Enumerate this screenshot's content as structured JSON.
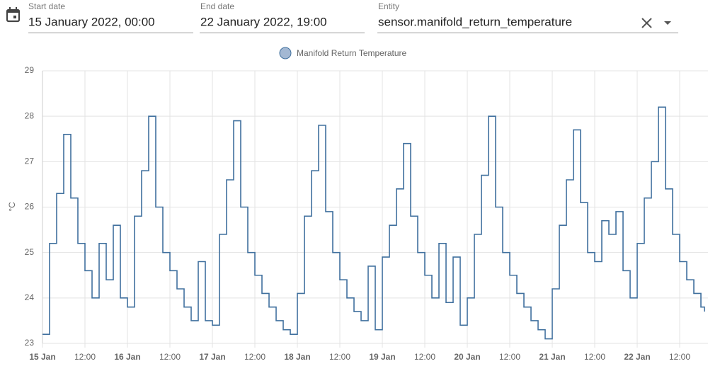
{
  "header": {
    "start_label": "Start date",
    "start_value": "15 January 2022, 00:00",
    "end_label": "End date",
    "end_value": "22 January 2022, 19:00",
    "entity_label": "Entity",
    "entity_value": "sensor.manifold_return_temperature"
  },
  "chart_data": {
    "type": "line",
    "step": true,
    "y_label": "°C",
    "grid": true,
    "xlim": [
      "2022-01-15T00:00",
      "2022-01-22T19:00"
    ],
    "ylim": [
      23,
      29
    ],
    "yticks": [
      23,
      24,
      25,
      26,
      27,
      28,
      29
    ],
    "xticks": [
      {
        "value": "2022-01-15T00:00",
        "label": "15 Jan"
      },
      {
        "value": "2022-01-15T12:00",
        "label": "12:00"
      },
      {
        "value": "2022-01-16T00:00",
        "label": "16 Jan"
      },
      {
        "value": "2022-01-16T12:00",
        "label": "12:00"
      },
      {
        "value": "2022-01-17T00:00",
        "label": "17 Jan"
      },
      {
        "value": "2022-01-17T12:00",
        "label": "12:00"
      },
      {
        "value": "2022-01-18T00:00",
        "label": "18 Jan"
      },
      {
        "value": "2022-01-18T12:00",
        "label": "12:00"
      },
      {
        "value": "2022-01-19T00:00",
        "label": "19 Jan"
      },
      {
        "value": "2022-01-19T12:00",
        "label": "12:00"
      },
      {
        "value": "2022-01-20T00:00",
        "label": "20 Jan"
      },
      {
        "value": "2022-01-20T12:00",
        "label": "12:00"
      },
      {
        "value": "2022-01-21T00:00",
        "label": "21 Jan"
      },
      {
        "value": "2022-01-21T12:00",
        "label": "12:00"
      },
      {
        "value": "2022-01-22T00:00",
        "label": "22 Jan"
      },
      {
        "value": "2022-01-22T12:00",
        "label": "12:00"
      }
    ],
    "x": [
      "2022-01-15T00:00",
      "2022-01-15T02:00",
      "2022-01-15T04:00",
      "2022-01-15T06:00",
      "2022-01-15T08:00",
      "2022-01-15T10:00",
      "2022-01-15T12:00",
      "2022-01-15T14:00",
      "2022-01-15T16:00",
      "2022-01-15T18:00",
      "2022-01-15T20:00",
      "2022-01-15T22:00",
      "2022-01-16T00:00",
      "2022-01-16T02:00",
      "2022-01-16T04:00",
      "2022-01-16T06:00",
      "2022-01-16T08:00",
      "2022-01-16T10:00",
      "2022-01-16T12:00",
      "2022-01-16T14:00",
      "2022-01-16T16:00",
      "2022-01-16T18:00",
      "2022-01-16T20:00",
      "2022-01-16T22:00",
      "2022-01-17T00:00",
      "2022-01-17T02:00",
      "2022-01-17T04:00",
      "2022-01-17T06:00",
      "2022-01-17T08:00",
      "2022-01-17T10:00",
      "2022-01-17T12:00",
      "2022-01-17T14:00",
      "2022-01-17T16:00",
      "2022-01-17T18:00",
      "2022-01-17T20:00",
      "2022-01-17T22:00",
      "2022-01-18T00:00",
      "2022-01-18T02:00",
      "2022-01-18T04:00",
      "2022-01-18T06:00",
      "2022-01-18T08:00",
      "2022-01-18T10:00",
      "2022-01-18T12:00",
      "2022-01-18T14:00",
      "2022-01-18T16:00",
      "2022-01-18T18:00",
      "2022-01-18T20:00",
      "2022-01-18T22:00",
      "2022-01-19T00:00",
      "2022-01-19T02:00",
      "2022-01-19T04:00",
      "2022-01-19T06:00",
      "2022-01-19T08:00",
      "2022-01-19T10:00",
      "2022-01-19T12:00",
      "2022-01-19T14:00",
      "2022-01-19T16:00",
      "2022-01-19T18:00",
      "2022-01-19T20:00",
      "2022-01-19T22:00",
      "2022-01-20T00:00",
      "2022-01-20T02:00",
      "2022-01-20T04:00",
      "2022-01-20T06:00",
      "2022-01-20T08:00",
      "2022-01-20T10:00",
      "2022-01-20T12:00",
      "2022-01-20T14:00",
      "2022-01-20T16:00",
      "2022-01-20T18:00",
      "2022-01-20T20:00",
      "2022-01-20T22:00",
      "2022-01-21T00:00",
      "2022-01-21T02:00",
      "2022-01-21T04:00",
      "2022-01-21T06:00",
      "2022-01-21T08:00",
      "2022-01-21T10:00",
      "2022-01-21T12:00",
      "2022-01-21T14:00",
      "2022-01-21T16:00",
      "2022-01-21T18:00",
      "2022-01-21T20:00",
      "2022-01-21T22:00",
      "2022-01-22T00:00",
      "2022-01-22T02:00",
      "2022-01-22T04:00",
      "2022-01-22T06:00",
      "2022-01-22T08:00",
      "2022-01-22T10:00",
      "2022-01-22T12:00",
      "2022-01-22T14:00",
      "2022-01-22T16:00",
      "2022-01-22T18:00",
      "2022-01-22T19:00"
    ],
    "series": [
      {
        "name": "Manifold Return Temperature",
        "color": "#40709e",
        "legend_fill": "#a3b8d3",
        "values": [
          23.2,
          25.2,
          26.3,
          27.6,
          26.2,
          25.2,
          24.6,
          24.0,
          25.2,
          24.4,
          25.6,
          24.0,
          23.8,
          25.8,
          26.8,
          28.0,
          26.0,
          25.0,
          24.6,
          24.2,
          23.8,
          23.5,
          24.8,
          23.5,
          23.4,
          25.4,
          26.6,
          27.9,
          26.0,
          25.0,
          24.5,
          24.1,
          23.8,
          23.5,
          23.3,
          23.2,
          24.1,
          25.8,
          26.8,
          27.8,
          25.9,
          25.0,
          24.4,
          24.0,
          23.7,
          23.5,
          24.7,
          23.3,
          24.9,
          25.6,
          26.4,
          27.4,
          25.8,
          25.0,
          24.5,
          24.0,
          25.2,
          23.9,
          24.9,
          23.4,
          24.0,
          25.4,
          26.7,
          28.0,
          26.0,
          25.0,
          24.5,
          24.1,
          23.8,
          23.5,
          23.3,
          23.1,
          24.2,
          25.6,
          26.6,
          27.7,
          26.1,
          25.0,
          24.8,
          25.7,
          25.4,
          25.9,
          24.6,
          24.0,
          25.2,
          26.2,
          27.0,
          28.2,
          26.4,
          25.4,
          24.8,
          24.4,
          24.1,
          23.8,
          23.7
        ]
      }
    ]
  }
}
